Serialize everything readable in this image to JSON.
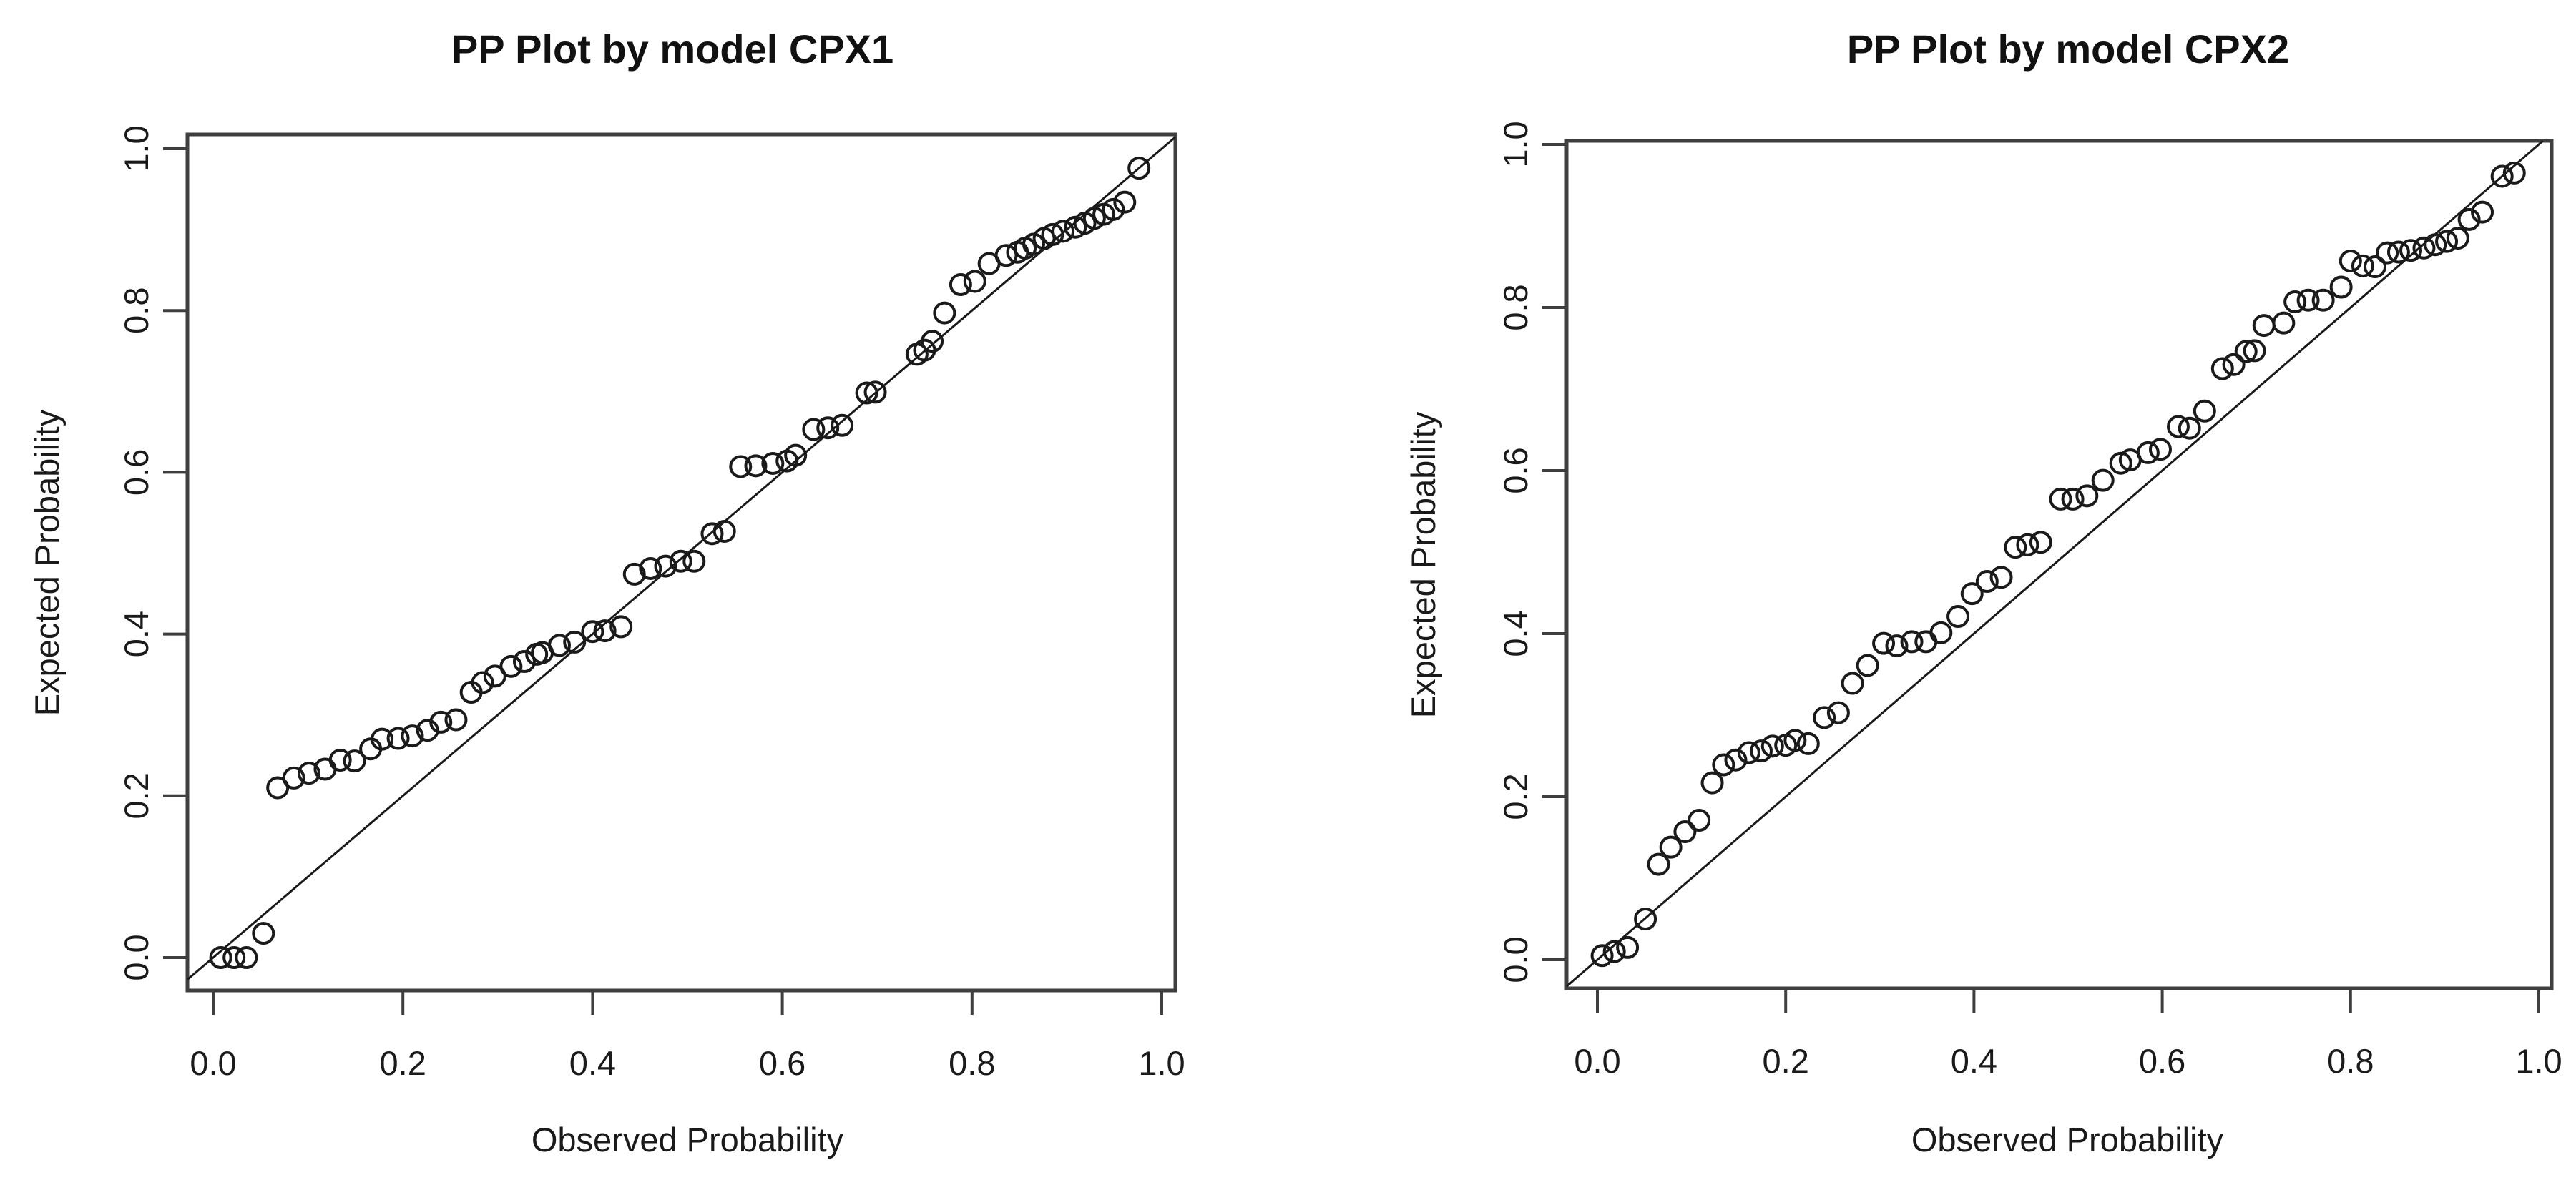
{
  "figure": {
    "background": "#ffffff",
    "ink_color": "#1a1a1a",
    "box_color": "#3f3f3f",
    "marker": "open-circle"
  },
  "chart_data": [
    {
      "type": "scatter",
      "title": "PP Plot by model CPX1",
      "xlabel": "Observed Probability",
      "ylabel": "Expected Probability",
      "xlim": [
        0.0,
        1.0
      ],
      "ylim": [
        0.0,
        1.0
      ],
      "x_ticks": [
        0.0,
        0.2,
        0.4,
        0.6,
        0.8,
        1.0
      ],
      "y_ticks": [
        0.0,
        0.2,
        0.4,
        0.6,
        0.8,
        1.0
      ],
      "grid": false,
      "legend": false,
      "reference_line": {
        "type": "identity",
        "from": [
          0,
          0
        ],
        "to": [
          1,
          1
        ]
      },
      "points": [
        [
          0.008,
          0.0
        ],
        [
          0.022,
          0.0
        ],
        [
          0.035,
          0.0
        ],
        [
          0.053,
          0.03
        ],
        [
          0.068,
          0.21
        ],
        [
          0.085,
          0.222
        ],
        [
          0.101,
          0.228
        ],
        [
          0.118,
          0.233
        ],
        [
          0.134,
          0.244
        ],
        [
          0.149,
          0.243
        ],
        [
          0.166,
          0.258
        ],
        [
          0.178,
          0.27
        ],
        [
          0.195,
          0.271
        ],
        [
          0.21,
          0.274
        ],
        [
          0.226,
          0.281
        ],
        [
          0.24,
          0.291
        ],
        [
          0.256,
          0.294
        ],
        [
          0.272,
          0.328
        ],
        [
          0.284,
          0.34
        ],
        [
          0.297,
          0.348
        ],
        [
          0.314,
          0.36
        ],
        [
          0.328,
          0.366
        ],
        [
          0.341,
          0.375
        ],
        [
          0.347,
          0.377
        ],
        [
          0.365,
          0.386
        ],
        [
          0.381,
          0.39
        ],
        [
          0.4,
          0.403
        ],
        [
          0.413,
          0.404
        ],
        [
          0.43,
          0.409
        ],
        [
          0.444,
          0.474
        ],
        [
          0.461,
          0.481
        ],
        [
          0.477,
          0.484
        ],
        [
          0.493,
          0.49
        ],
        [
          0.507,
          0.49
        ],
        [
          0.526,
          0.524
        ],
        [
          0.539,
          0.527
        ],
        [
          0.556,
          0.607
        ],
        [
          0.572,
          0.608
        ],
        [
          0.59,
          0.611
        ],
        [
          0.605,
          0.614
        ],
        [
          0.614,
          0.621
        ],
        [
          0.633,
          0.653
        ],
        [
          0.648,
          0.655
        ],
        [
          0.663,
          0.658
        ],
        [
          0.689,
          0.698
        ],
        [
          0.698,
          0.699
        ],
        [
          0.742,
          0.746
        ],
        [
          0.75,
          0.751
        ],
        [
          0.758,
          0.762
        ],
        [
          0.771,
          0.797
        ],
        [
          0.788,
          0.832
        ],
        [
          0.803,
          0.836
        ],
        [
          0.818,
          0.858
        ],
        [
          0.836,
          0.868
        ],
        [
          0.848,
          0.872
        ],
        [
          0.856,
          0.877
        ],
        [
          0.865,
          0.882
        ],
        [
          0.876,
          0.889
        ],
        [
          0.885,
          0.894
        ],
        [
          0.896,
          0.898
        ],
        [
          0.909,
          0.903
        ],
        [
          0.919,
          0.908
        ],
        [
          0.929,
          0.914
        ],
        [
          0.939,
          0.919
        ],
        [
          0.949,
          0.925
        ],
        [
          0.961,
          0.934
        ],
        [
          0.976,
          0.976
        ]
      ]
    },
    {
      "type": "scatter",
      "title": "PP Plot by model CPX2",
      "xlabel": "Observed Probability",
      "ylabel": "Expected Probability",
      "xlim": [
        0.0,
        1.0
      ],
      "ylim": [
        0.0,
        1.0
      ],
      "x_ticks": [
        0.0,
        0.2,
        0.4,
        0.6,
        0.8,
        1.0
      ],
      "y_ticks": [
        0.0,
        0.2,
        0.4,
        0.6,
        0.8,
        1.0
      ],
      "grid": false,
      "legend": false,
      "reference_line": {
        "type": "identity",
        "from": [
          0,
          0
        ],
        "to": [
          1,
          1
        ]
      },
      "points": [
        [
          0.005,
          0.005
        ],
        [
          0.018,
          0.01
        ],
        [
          0.032,
          0.015
        ],
        [
          0.051,
          0.05
        ],
        [
          0.065,
          0.117
        ],
        [
          0.078,
          0.138
        ],
        [
          0.093,
          0.157
        ],
        [
          0.108,
          0.171
        ],
        [
          0.122,
          0.217
        ],
        [
          0.134,
          0.239
        ],
        [
          0.147,
          0.245
        ],
        [
          0.161,
          0.254
        ],
        [
          0.174,
          0.256
        ],
        [
          0.186,
          0.262
        ],
        [
          0.2,
          0.263
        ],
        [
          0.21,
          0.269
        ],
        [
          0.224,
          0.265
        ],
        [
          0.241,
          0.297
        ],
        [
          0.256,
          0.303
        ],
        [
          0.271,
          0.339
        ],
        [
          0.287,
          0.361
        ],
        [
          0.304,
          0.388
        ],
        [
          0.318,
          0.385
        ],
        [
          0.334,
          0.39
        ],
        [
          0.349,
          0.39
        ],
        [
          0.365,
          0.401
        ],
        [
          0.383,
          0.421
        ],
        [
          0.398,
          0.449
        ],
        [
          0.414,
          0.464
        ],
        [
          0.429,
          0.469
        ],
        [
          0.444,
          0.506
        ],
        [
          0.457,
          0.509
        ],
        [
          0.471,
          0.512
        ],
        [
          0.492,
          0.565
        ],
        [
          0.505,
          0.565
        ],
        [
          0.52,
          0.569
        ],
        [
          0.537,
          0.588
        ],
        [
          0.556,
          0.609
        ],
        [
          0.566,
          0.613
        ],
        [
          0.585,
          0.622
        ],
        [
          0.598,
          0.626
        ],
        [
          0.617,
          0.654
        ],
        [
          0.629,
          0.652
        ],
        [
          0.645,
          0.673
        ],
        [
          0.664,
          0.725
        ],
        [
          0.676,
          0.73
        ],
        [
          0.689,
          0.746
        ],
        [
          0.698,
          0.747
        ],
        [
          0.708,
          0.778
        ],
        [
          0.729,
          0.781
        ],
        [
          0.741,
          0.807
        ],
        [
          0.755,
          0.809
        ],
        [
          0.771,
          0.809
        ],
        [
          0.79,
          0.825
        ],
        [
          0.8,
          0.857
        ],
        [
          0.813,
          0.851
        ],
        [
          0.826,
          0.85
        ],
        [
          0.839,
          0.867
        ],
        [
          0.851,
          0.868
        ],
        [
          0.864,
          0.87
        ],
        [
          0.878,
          0.873
        ],
        [
          0.89,
          0.877
        ],
        [
          0.902,
          0.881
        ],
        [
          0.914,
          0.885
        ],
        [
          0.926,
          0.908
        ],
        [
          0.94,
          0.917
        ],
        [
          0.961,
          0.961
        ],
        [
          0.974,
          0.965
        ]
      ]
    }
  ]
}
